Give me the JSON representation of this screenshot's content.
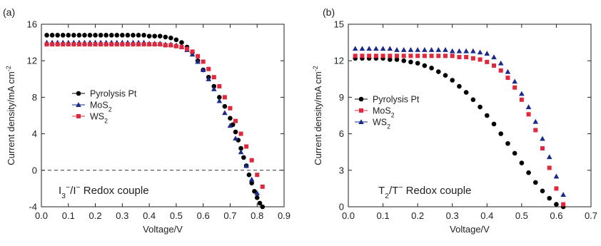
{
  "chart_data": [
    {
      "type": "scatter",
      "panel_label": "(a)",
      "xlabel": "Voltage/V",
      "ylabel": "Current density/mA cm",
      "ylabel_sup": "-2",
      "xlim": [
        0.0,
        0.9
      ],
      "ylim": [
        -4,
        16
      ],
      "xticks": [
        "0.0",
        "0.1",
        "0.2",
        "0.3",
        "0.4",
        "0.5",
        "0.6",
        "0.7",
        "0.8",
        "0.9"
      ],
      "yticks": [
        "-4",
        "0",
        "4",
        "8",
        "12",
        "16"
      ],
      "zero_line": true,
      "legend_position": "left-middle",
      "annotation": {
        "text": "I3−/I− Redox couple",
        "parts": [
          [
            "I",
            ""
          ],
          [
            "3",
            "sub"
          ],
          [
            "−",
            "sup"
          ],
          [
            "/I",
            ""
          ],
          [
            "−",
            "sup"
          ],
          [
            " Redox couple",
            ""
          ]
        ]
      },
      "series": [
        {
          "name": "Pyrolysis Pt",
          "name_parts": [
            [
              "Pyrolysis Pt",
              ""
            ]
          ],
          "marker": "circle",
          "color": "#000000",
          "x": [
            0.02,
            0.04,
            0.06,
            0.08,
            0.1,
            0.12,
            0.14,
            0.16,
            0.18,
            0.2,
            0.22,
            0.24,
            0.26,
            0.28,
            0.3,
            0.32,
            0.34,
            0.36,
            0.38,
            0.4,
            0.42,
            0.44,
            0.46,
            0.48,
            0.5,
            0.52,
            0.54,
            0.56,
            0.58,
            0.6,
            0.62,
            0.64,
            0.66,
            0.68,
            0.7,
            0.71,
            0.72,
            0.73,
            0.74,
            0.75,
            0.76,
            0.77,
            0.78,
            0.79,
            0.8,
            0.81,
            0.82
          ],
          "y": [
            14.8,
            14.8,
            14.8,
            14.8,
            14.8,
            14.8,
            14.8,
            14.8,
            14.8,
            14.8,
            14.8,
            14.8,
            14.8,
            14.8,
            14.8,
            14.8,
            14.8,
            14.8,
            14.8,
            14.7,
            14.7,
            14.7,
            14.6,
            14.5,
            14.3,
            14.0,
            13.5,
            12.9,
            12.0,
            11.0,
            10.2,
            9.2,
            8.0,
            7.0,
            5.7,
            5.0,
            4.2,
            3.3,
            2.4,
            1.4,
            0.5,
            -0.5,
            -1.4,
            -2.3,
            -3.0,
            -3.6,
            -4.0
          ]
        },
        {
          "name": "MoS2",
          "name_parts": [
            [
              "MoS",
              ""
            ],
            [
              "2",
              "sub"
            ]
          ],
          "marker": "triangle",
          "color": "#1a2a8a",
          "x": [
            0.02,
            0.04,
            0.06,
            0.08,
            0.1,
            0.12,
            0.14,
            0.16,
            0.18,
            0.2,
            0.22,
            0.24,
            0.26,
            0.28,
            0.3,
            0.32,
            0.34,
            0.36,
            0.38,
            0.4,
            0.42,
            0.44,
            0.46,
            0.48,
            0.5,
            0.52,
            0.54,
            0.56,
            0.58,
            0.6,
            0.62,
            0.64,
            0.66,
            0.68,
            0.7,
            0.72,
            0.74,
            0.76,
            0.78,
            0.8
          ],
          "y": [
            14.0,
            14.0,
            14.0,
            14.0,
            14.0,
            14.0,
            14.0,
            14.0,
            14.0,
            14.0,
            14.0,
            14.0,
            14.0,
            14.0,
            14.0,
            14.0,
            14.0,
            14.0,
            14.0,
            13.9,
            13.9,
            13.9,
            13.8,
            13.8,
            13.7,
            13.5,
            13.2,
            12.7,
            11.9,
            11.0,
            10.0,
            8.9,
            7.6,
            6.3,
            4.9,
            3.5,
            2.0,
            0.5,
            -1.0,
            -2.5
          ]
        },
        {
          "name": "WS2",
          "name_parts": [
            [
              "WS",
              ""
            ],
            [
              "2",
              "sub"
            ]
          ],
          "marker": "square",
          "color": "#e0283c",
          "x": [
            0.02,
            0.04,
            0.06,
            0.08,
            0.1,
            0.12,
            0.14,
            0.16,
            0.18,
            0.2,
            0.22,
            0.24,
            0.26,
            0.28,
            0.3,
            0.32,
            0.34,
            0.36,
            0.38,
            0.4,
            0.42,
            0.44,
            0.46,
            0.48,
            0.5,
            0.52,
            0.54,
            0.56,
            0.58,
            0.6,
            0.62,
            0.64,
            0.66,
            0.68,
            0.7,
            0.72,
            0.74,
            0.76,
            0.78,
            0.8,
            0.82
          ],
          "y": [
            13.8,
            13.8,
            13.8,
            13.8,
            13.8,
            13.8,
            13.8,
            13.8,
            13.8,
            13.8,
            13.8,
            13.8,
            13.8,
            13.8,
            13.8,
            13.8,
            13.8,
            13.8,
            13.8,
            13.8,
            13.8,
            13.8,
            13.7,
            13.7,
            13.6,
            13.5,
            13.3,
            13.0,
            12.5,
            11.9,
            11.1,
            10.2,
            9.2,
            8.0,
            6.8,
            5.4,
            4.0,
            2.6,
            1.1,
            -0.5,
            -1.8
          ]
        }
      ]
    },
    {
      "type": "scatter",
      "panel_label": "(b)",
      "xlabel": "Voltage/V",
      "ylabel": "Current density/mA cm",
      "ylabel_sup": "-2",
      "xlim": [
        0.0,
        0.7
      ],
      "ylim": [
        0,
        15
      ],
      "xticks": [
        "0.0",
        "0.1",
        "0.2",
        "0.3",
        "0.4",
        "0.5",
        "0.6",
        "0.7"
      ],
      "yticks": [
        "0",
        "3",
        "6",
        "9",
        "12",
        "15"
      ],
      "zero_line": false,
      "legend_position": "left-middle",
      "annotation": {
        "text": "T2/T− Redox couple",
        "parts": [
          [
            "T",
            ""
          ],
          [
            "2",
            "sub"
          ],
          [
            "/T",
            ""
          ],
          [
            "−",
            "sup"
          ],
          [
            " Redox couple",
            ""
          ]
        ]
      },
      "series": [
        {
          "name": "Pyrolysis Pt",
          "name_parts": [
            [
              "Pyrolysis Pt",
              ""
            ]
          ],
          "marker": "circle",
          "color": "#000000",
          "x": [
            0.02,
            0.04,
            0.06,
            0.08,
            0.1,
            0.12,
            0.14,
            0.16,
            0.18,
            0.2,
            0.22,
            0.24,
            0.26,
            0.28,
            0.3,
            0.32,
            0.34,
            0.36,
            0.38,
            0.4,
            0.42,
            0.44,
            0.46,
            0.48,
            0.5,
            0.52,
            0.54,
            0.56,
            0.58,
            0.6,
            0.62
          ],
          "y": [
            12.2,
            12.2,
            12.2,
            12.2,
            12.2,
            12.1,
            12.1,
            12.0,
            11.9,
            11.8,
            11.6,
            11.4,
            11.1,
            10.8,
            10.4,
            9.9,
            9.4,
            8.8,
            8.2,
            7.5,
            6.8,
            6.0,
            5.2,
            4.4,
            3.6,
            2.8,
            2.0,
            1.3,
            0.7,
            0.2,
            0.0
          ]
        },
        {
          "name": "MoS2",
          "name_parts": [
            [
              "MoS",
              ""
            ],
            [
              "2",
              "sub"
            ]
          ],
          "marker": "square",
          "color": "#e0283c",
          "x": [
            0.02,
            0.04,
            0.06,
            0.08,
            0.1,
            0.12,
            0.14,
            0.16,
            0.18,
            0.2,
            0.22,
            0.24,
            0.26,
            0.28,
            0.3,
            0.32,
            0.34,
            0.36,
            0.38,
            0.4,
            0.42,
            0.44,
            0.46,
            0.48,
            0.5,
            0.52,
            0.54,
            0.56,
            0.58,
            0.6,
            0.62
          ],
          "y": [
            12.4,
            12.4,
            12.4,
            12.4,
            12.4,
            12.4,
            12.4,
            12.4,
            12.4,
            12.4,
            12.4,
            12.4,
            12.4,
            12.4,
            12.4,
            12.3,
            12.3,
            12.2,
            12.1,
            11.9,
            11.6,
            11.2,
            10.6,
            9.8,
            8.8,
            7.6,
            6.3,
            4.8,
            3.2,
            1.5,
            0.2
          ]
        },
        {
          "name": "WS2",
          "name_parts": [
            [
              "WS",
              ""
            ],
            [
              "2",
              "sub"
            ]
          ],
          "marker": "triangle",
          "color": "#1a2a8a",
          "x": [
            0.02,
            0.04,
            0.06,
            0.08,
            0.1,
            0.12,
            0.14,
            0.16,
            0.18,
            0.2,
            0.22,
            0.24,
            0.26,
            0.28,
            0.3,
            0.32,
            0.34,
            0.36,
            0.38,
            0.4,
            0.42,
            0.44,
            0.46,
            0.48,
            0.5,
            0.52,
            0.54,
            0.56,
            0.58,
            0.6,
            0.62
          ],
          "y": [
            13.0,
            13.0,
            13.0,
            13.0,
            13.0,
            13.0,
            12.9,
            12.9,
            12.9,
            12.9,
            12.9,
            12.9,
            12.9,
            12.9,
            12.8,
            12.8,
            12.8,
            12.8,
            12.7,
            12.6,
            12.3,
            11.8,
            11.1,
            10.3,
            9.3,
            8.2,
            7.0,
            5.6,
            4.1,
            2.5,
            1.0
          ]
        }
      ]
    }
  ]
}
